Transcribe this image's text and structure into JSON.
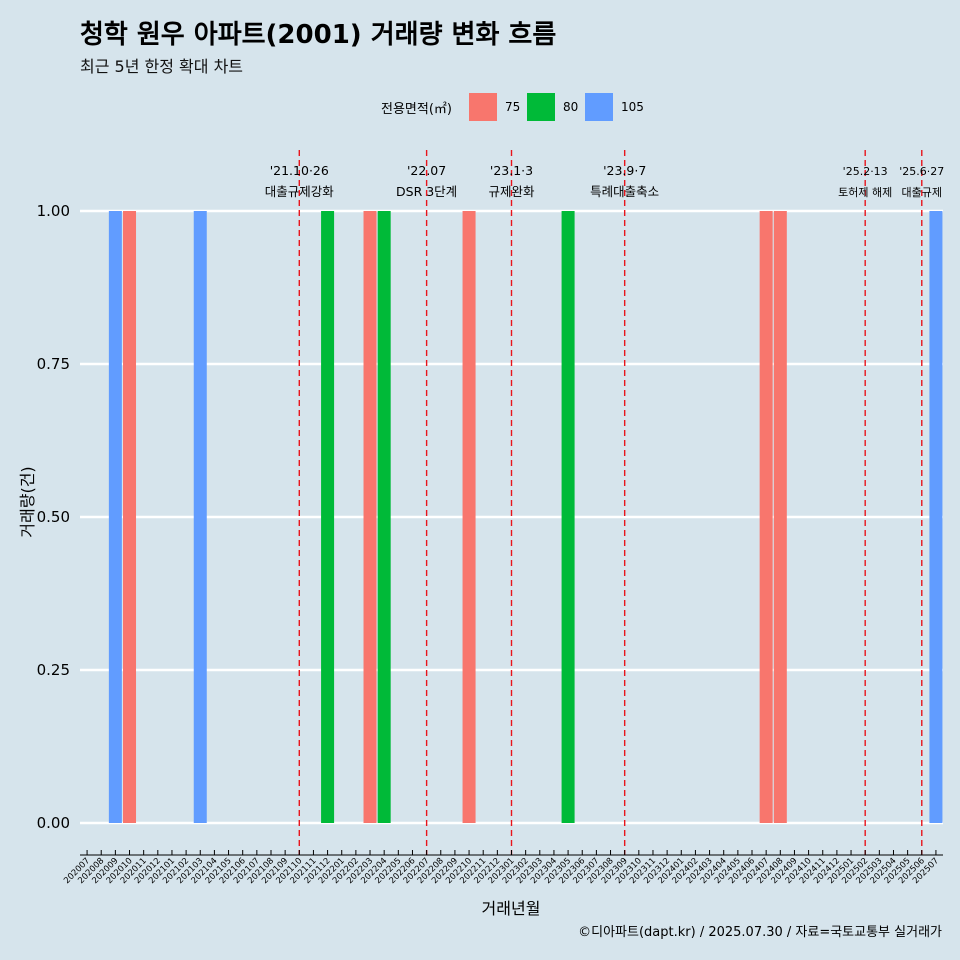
{
  "header": {
    "title": "청학 원우 아파트(2001) 거래량 변화 흐름",
    "subtitle": "최근 5년 한정 확대 차트"
  },
  "legend": {
    "title": "전용면적(㎡)",
    "items": [
      {
        "label": "75",
        "color": "#F8766D"
      },
      {
        "label": "80",
        "color": "#00BA38"
      },
      {
        "label": "105",
        "color": "#619CFF"
      }
    ]
  },
  "caption": "©디아파트(dapt.kr) / 2025.07.30 / 자료=국토교통부 실거래가",
  "chart_data": {
    "type": "bar",
    "title": "청학 원우 아파트(2001) 거래량 변화 흐름",
    "subtitle": "최근 5년 한정 확대 차트",
    "xlabel": "거래년월",
    "ylabel": "거래량(건)",
    "ylim": [
      0,
      1
    ],
    "yticks": [
      "0.00",
      "0.25",
      "0.50",
      "0.75",
      "1.00"
    ],
    "grid": true,
    "legend_position": "top",
    "categories": [
      "202007",
      "202008",
      "202009",
      "202010",
      "202011",
      "202012",
      "202101",
      "202102",
      "202103",
      "202104",
      "202105",
      "202106",
      "202107",
      "202108",
      "202109",
      "202110",
      "202111",
      "202112",
      "202201",
      "202202",
      "202203",
      "202204",
      "202205",
      "202206",
      "202207",
      "202208",
      "202209",
      "202210",
      "202211",
      "202212",
      "202301",
      "202302",
      "202303",
      "202304",
      "202305",
      "202306",
      "202307",
      "202308",
      "202309",
      "202310",
      "202311",
      "202312",
      "202401",
      "202402",
      "202403",
      "202404",
      "202405",
      "202406",
      "202407",
      "202408",
      "202409",
      "202410",
      "202411",
      "202412",
      "202501",
      "202502",
      "202503",
      "202504",
      "202505",
      "202506",
      "202507"
    ],
    "bars": [
      {
        "month": "202009",
        "series": "105",
        "value": 1
      },
      {
        "month": "202010",
        "series": "75",
        "value": 1
      },
      {
        "month": "202103",
        "series": "105",
        "value": 1
      },
      {
        "month": "202112",
        "series": "80",
        "value": 1
      },
      {
        "month": "202203",
        "series": "75",
        "value": 1
      },
      {
        "month": "202204",
        "series": "80",
        "value": 1
      },
      {
        "month": "202210",
        "series": "75",
        "value": 1
      },
      {
        "month": "202305",
        "series": "80",
        "value": 1
      },
      {
        "month": "202407",
        "series": "75",
        "value": 1
      },
      {
        "month": "202408",
        "series": "75",
        "value": 1
      },
      {
        "month": "202507",
        "series": "105",
        "value": 1
      }
    ],
    "annotations": [
      {
        "month": "202110",
        "date": "'21.10·26",
        "label": "대출규제강화"
      },
      {
        "month": "202207",
        "date": "'22.07",
        "label": "DSR 3단계"
      },
      {
        "month": "202301",
        "date": "'23.1·3",
        "label": "규제완화"
      },
      {
        "month": "202309",
        "date": "'23.9·7",
        "label": "특례대출축소"
      },
      {
        "month": "202502",
        "date": "'25.2·13",
        "label": "토허제 해제"
      },
      {
        "month": "202506",
        "date": "'25.6·27",
        "label": "대출규제"
      }
    ]
  }
}
